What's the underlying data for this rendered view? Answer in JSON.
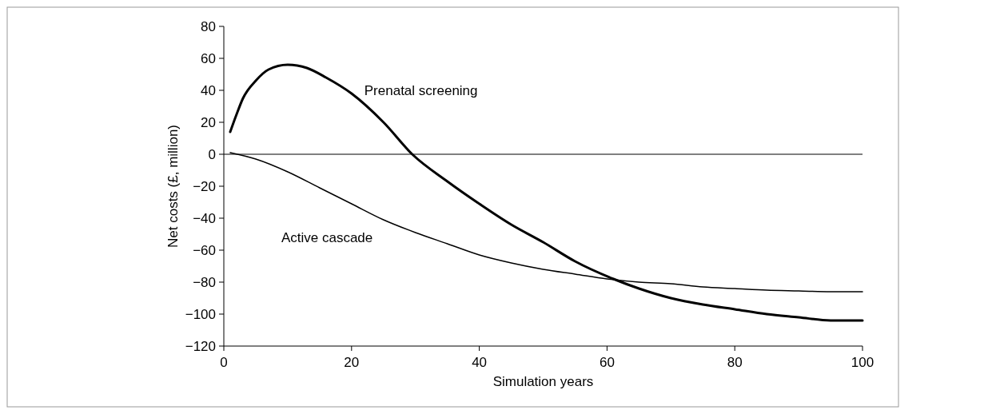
{
  "chart_data": {
    "type": "line",
    "xlabel": "Simulation years",
    "ylabel": "Net costs (£, million)",
    "xlim": [
      0,
      100
    ],
    "xticks": [
      0,
      20,
      40,
      60,
      80,
      100
    ],
    "ylim": [
      -120,
      80
    ],
    "yticks": [
      80,
      60,
      40,
      20,
      0,
      -20,
      -40,
      -60,
      -80,
      -100,
      -120
    ],
    "grid": false,
    "ref_lines": [
      {
        "axis": "y",
        "value": 0,
        "color": "#000000"
      }
    ],
    "annotations": [
      "Prenatal screening",
      "Active cascade"
    ],
    "series": [
      {
        "color": "#000000",
        "x": [
          1,
          2,
          3,
          5,
          7,
          10,
          13,
          16,
          20,
          25,
          29.5,
          35,
          40,
          45,
          50,
          55,
          61,
          65,
          70,
          75,
          80,
          85,
          90,
          95,
          97,
          100
        ],
        "values": [
          14,
          25,
          35,
          46,
          53,
          56,
          54,
          48,
          38,
          20,
          0,
          -17,
          -31,
          -44,
          -55,
          -67,
          -78,
          -84,
          -90,
          -94,
          -97,
          -100,
          -102,
          -104,
          -104,
          -104
        ]
      },
      {
        "color": "#000000",
        "x": [
          1,
          5,
          10,
          15,
          20,
          25,
          30,
          35,
          40,
          45,
          50,
          55,
          60,
          65,
          70,
          75,
          80,
          85,
          90,
          95,
          100
        ],
        "values": [
          1,
          -3,
          -11,
          -21,
          -31,
          -41,
          -49,
          -56,
          -63,
          -68,
          -72,
          -75,
          -78,
          -80,
          -81,
          -83,
          -84,
          -85,
          -85.5,
          -86,
          -86
        ]
      }
    ]
  }
}
